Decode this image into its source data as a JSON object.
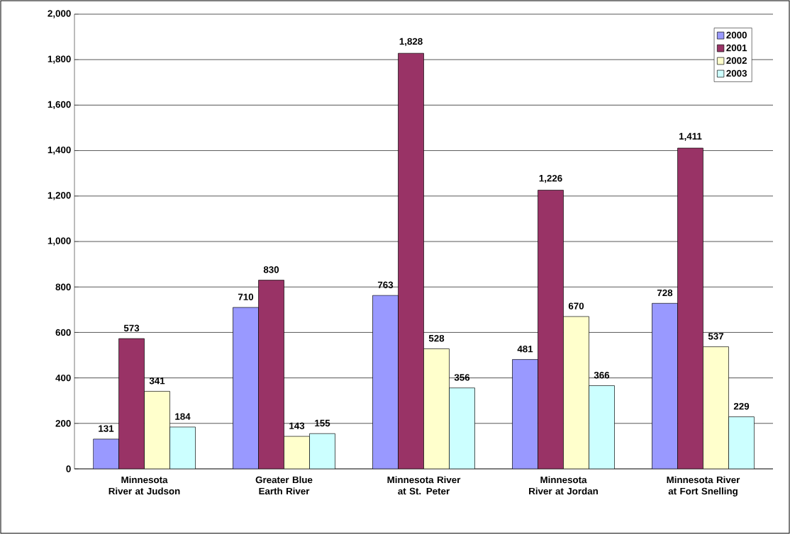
{
  "chart_data": {
    "type": "bar",
    "categories": [
      "Minnesota River at Judson",
      "Greater Blue Earth River",
      "Minnesota River at St. Peter",
      "Minnesota River at Jordan",
      "Minnesota River at Fort Snelling"
    ],
    "series": [
      {
        "name": "2000",
        "color": "#9999ff",
        "values": [
          131,
          710,
          763,
          481,
          728
        ],
        "value_labels": [
          "131",
          "710",
          "763",
          "481",
          "728"
        ]
      },
      {
        "name": "2001",
        "color": "#993366",
        "values": [
          573,
          830,
          1828,
          1226,
          1411
        ],
        "value_labels": [
          "573",
          "830",
          "1,828",
          "1,226",
          "1,411"
        ]
      },
      {
        "name": "2002",
        "color": "#ffffcc",
        "values": [
          341,
          143,
          528,
          670,
          537
        ],
        "value_labels": [
          "341",
          "143",
          "528",
          "670",
          "537"
        ]
      },
      {
        "name": "2003",
        "color": "#ccffff",
        "values": [
          184,
          155,
          356,
          366,
          229
        ],
        "value_labels": [
          "184",
          "155",
          "356",
          "366",
          "229"
        ]
      }
    ],
    "ylim": [
      0,
      2000
    ],
    "yticks": [
      0,
      {
        "value": 200,
        "label": "200"
      },
      {
        "value": 400,
        "label": "400"
      },
      {
        "value": 600,
        "label": "600"
      },
      {
        "value": 800,
        "label": "800"
      },
      {
        "value": 1000,
        "label": "1,000"
      },
      {
        "value": 1200,
        "label": "1,200"
      },
      {
        "value": 1400,
        "label": "1,400"
      },
      {
        "value": 1600,
        "label": "1,600"
      },
      {
        "value": 1800,
        "label": "1,800"
      },
      {
        "value": 2000,
        "label": "2,000"
      }
    ],
    "grid": "y",
    "legend": "top right"
  }
}
